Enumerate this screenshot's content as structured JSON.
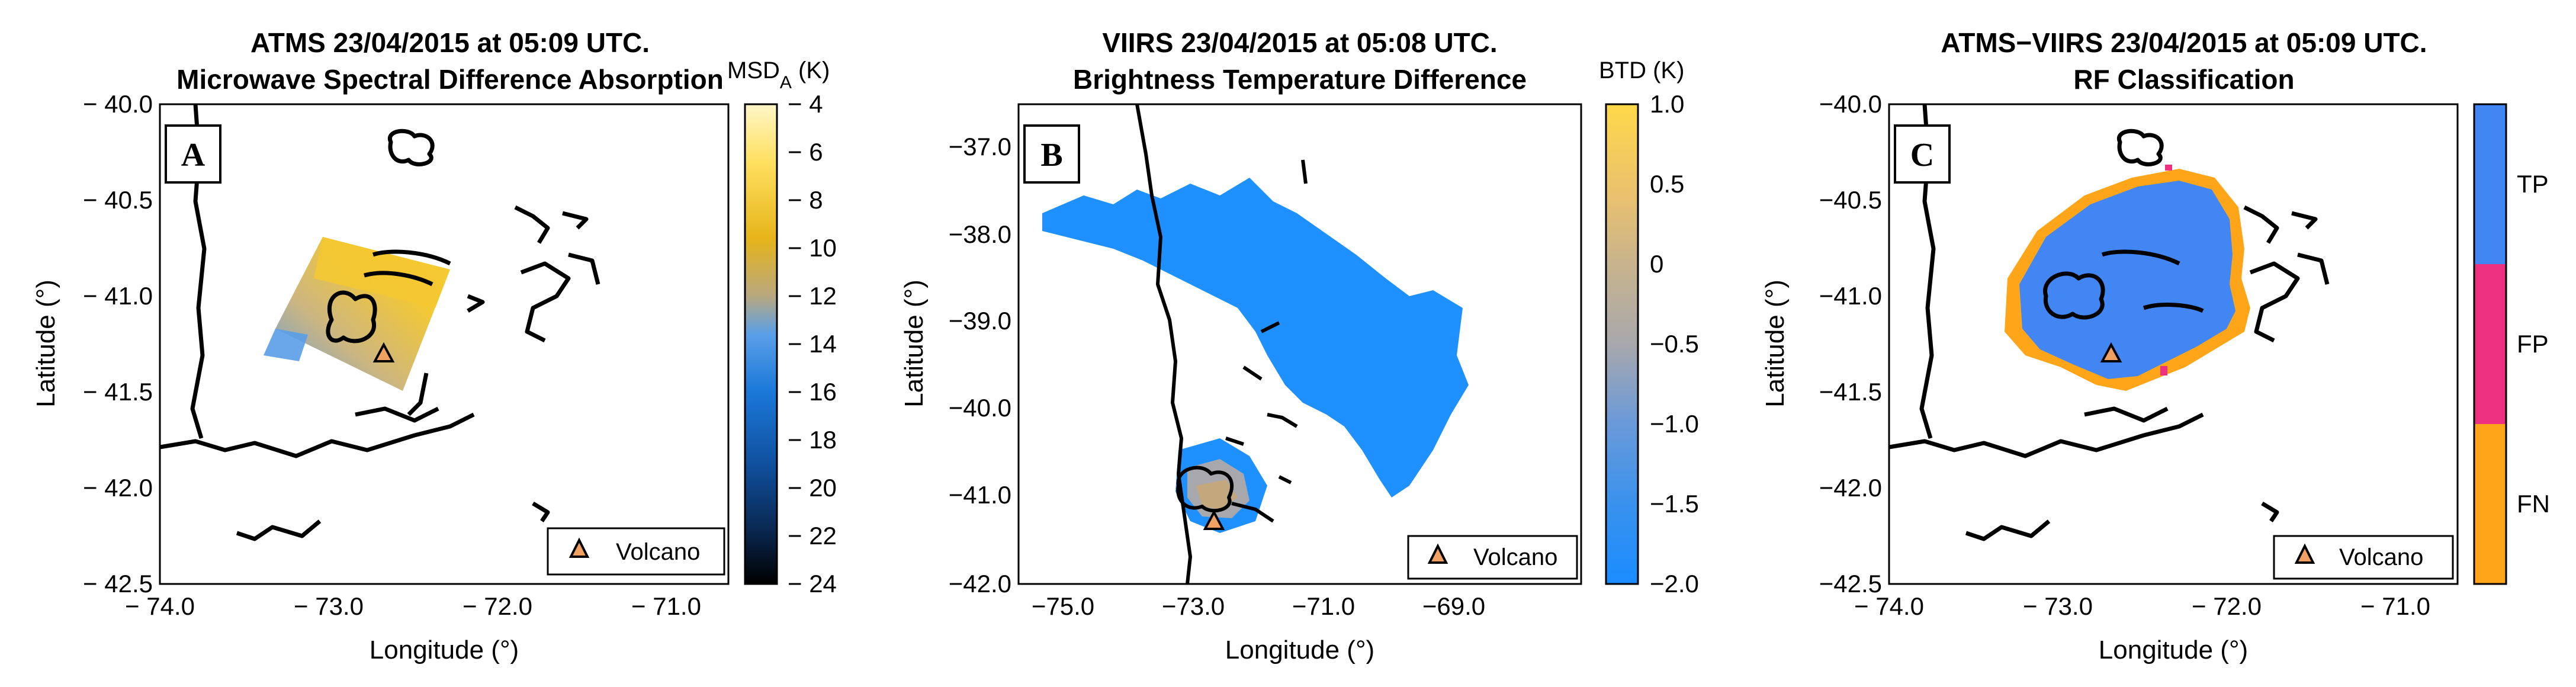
{
  "panels": [
    {
      "letter": "A",
      "title_line1": "ATMS 23/04/2015 at 05:09 UTC.",
      "title_line2": "Microwave Spectral Difference Absorption",
      "xlabel": "Longitude (°)",
      "ylabel": "Latitude (°)",
      "xticks": [
        "− 74.0",
        "− 73.0",
        "− 72.0",
        "− 71.0"
      ],
      "yticks": [
        "− 40.0",
        "− 40.5",
        "− 41.0",
        "− 41.5",
        "− 42.0",
        "− 42.5"
      ],
      "colorbar_label_main": "MSD",
      "colorbar_label_sub": "A",
      "colorbar_label_unit": " (K)",
      "colorbar_ticks": [
        "− 4",
        "− 6",
        "− 8",
        "− 10",
        "− 12",
        "− 14",
        "− 16",
        "− 18",
        "− 20",
        "− 22",
        "− 24"
      ],
      "legend": "Volcano"
    },
    {
      "letter": "B",
      "title_line1": "VIIRS 23/04/2015 at 05:08 UTC.",
      "title_line2": "Brightness Temperature Difference",
      "xlabel": "Longitude (°)",
      "ylabel": "Latitude (°)",
      "xticks": [
        "−75.0",
        "−73.0",
        "−71.0",
        "−69.0"
      ],
      "yticks": [
        "−37.0",
        "−38.0",
        "−39.0",
        "−40.0",
        "−41.0",
        "−42.0"
      ],
      "colorbar_label": "BTD (K)",
      "colorbar_ticks": [
        "1.0",
        "0.5",
        "0",
        "−0.5",
        "−1.0",
        "−1.5",
        "−2.0"
      ],
      "legend": "Volcano"
    },
    {
      "letter": "C",
      "title_line1": "ATMS−VIIRS 23/04/2015 at 05:09 UTC.",
      "title_line2": "RF Classification",
      "xlabel": "Longitude (°)",
      "ylabel": "Latitude (°)",
      "xticks": [
        "− 74.0",
        "− 73.0",
        "− 72.0",
        "− 71.0"
      ],
      "yticks": [
        "−40.0",
        "−40.5",
        "−41.0",
        "−41.5",
        "−42.0",
        "−42.5"
      ],
      "colorbar_ticks": [
        "TP",
        "FP",
        "FN"
      ],
      "legend": "Volcano"
    }
  ],
  "chart_data": [
    {
      "type": "heatmap",
      "title": "ATMS 23/04/2015 at 05:09 UTC. Microwave Spectral Difference Absorption",
      "xlabel": "Longitude (°)",
      "ylabel": "Latitude (°)",
      "xlim": [
        -74.4,
        -70.5
      ],
      "ylim": [
        -42.5,
        -40.0
      ],
      "color_range": [
        -24,
        -4
      ],
      "colormap": [
        "#000000",
        "#0a2e66",
        "#1f7fe0",
        "#9ea6b0",
        "#e8b400",
        "#ffd84a",
        "#fff0a0"
      ],
      "volcano": {
        "lon": -72.62,
        "lat": -41.33
      }
    },
    {
      "type": "heatmap",
      "title": "VIIRS 23/04/2015 at 05:08 UTC. Brightness Temperature Difference",
      "xlabel": "Longitude (°)",
      "ylabel": "Latitude (°)",
      "xlim": [
        -75.8,
        -66.8
      ],
      "ylim": [
        -42.0,
        -36.5
      ],
      "color_range": [
        -2.0,
        1.0
      ],
      "colormap": [
        "#1e90ff",
        "#4d9de0",
        "#a9a9a9",
        "#d7b77a",
        "#ffd84a"
      ],
      "volcano": {
        "lon": -72.62,
        "lat": -41.33
      }
    },
    {
      "type": "heatmap",
      "title": "ATMS−VIIRS 23/04/2015 at 05:09 UTC. RF Classification",
      "xlabel": "Longitude (°)",
      "ylabel": "Latitude (°)",
      "xlim": [
        -74.4,
        -70.5
      ],
      "ylim": [
        -42.5,
        -40.0
      ],
      "classes": [
        {
          "name": "TP",
          "color": "#4286f4"
        },
        {
          "name": "FP",
          "color": "#ee3080"
        },
        {
          "name": "FN",
          "color": "#ffa51a"
        }
      ],
      "volcano": {
        "lon": -72.62,
        "lat": -41.33
      }
    }
  ],
  "colors": {
    "tp": "#4286f4",
    "fp": "#ee3080",
    "fn": "#ffa51a",
    "volcano_marker": "#f0a060",
    "ash_blue": "#1e90ff"
  }
}
